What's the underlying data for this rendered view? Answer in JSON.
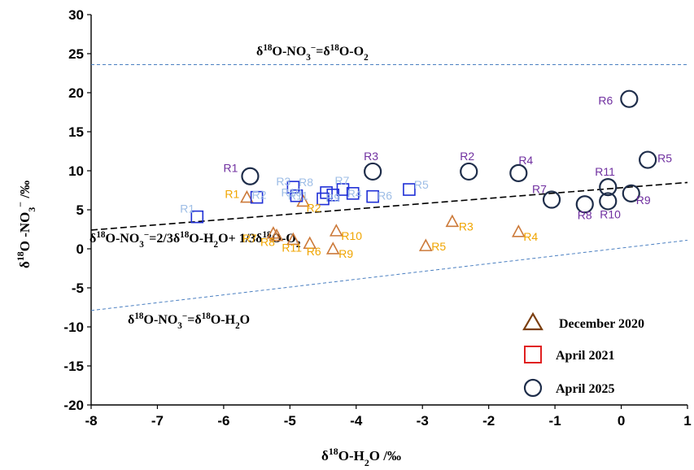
{
  "chart_data": {
    "type": "scatter",
    "xlabel": "δ18O-H2O /‰",
    "ylabel": "δ18O -NO3− /‰",
    "xlim": [
      -8,
      1
    ],
    "ylim": [
      -20,
      30
    ],
    "xticks": [
      "-8",
      "-7",
      "-6",
      "-5",
      "-4",
      "-3",
      "-2",
      "-1",
      "0",
      "1"
    ],
    "yticks": [
      "-20",
      "-15",
      "-10",
      "-5",
      "0",
      "5",
      "10",
      "15",
      "20",
      "25",
      "30"
    ],
    "colors": {
      "dec_marker": "#cc7a3a",
      "dec_label": "#f0a500",
      "apr21_marker": "#1f2fd6",
      "apr21_label": "#9dbde6",
      "apr25_marker": "#1e2d4a",
      "apr25_label": "#7030a0",
      "ref_line": "#4a7fc1",
      "mix_line": "#000000",
      "legend_triangle": "#7b3f10",
      "legend_square": "#e02020",
      "legend_circle": "#1e2d4a"
    },
    "lines": [
      {
        "name": "air-o2-line",
        "style": "dashed-blue",
        "points": [
          [
            -8,
            23.6
          ],
          [
            1,
            23.6
          ]
        ]
      },
      {
        "name": "water-line",
        "style": "dashed-blue",
        "points": [
          [
            -8,
            -7.9
          ],
          [
            1,
            1.1
          ]
        ]
      },
      {
        "name": "mixing-line",
        "style": "dashed-black",
        "points": [
          [
            -8,
            2.4
          ],
          [
            1,
            8.5
          ]
        ]
      }
    ],
    "series": [
      {
        "name": "December 2020",
        "marker": "triangle",
        "points": [
          {
            "label": "R1",
            "x": -5.65,
            "y": 6.5
          },
          {
            "label": "R2",
            "x": -4.8,
            "y": 6.0
          },
          {
            "label": "R3",
            "x": -2.55,
            "y": 3.4
          },
          {
            "label": "R4",
            "x": -1.55,
            "y": 2.1
          },
          {
            "label": "R5",
            "x": -2.95,
            "y": 0.3
          },
          {
            "label": "R6",
            "x": -4.7,
            "y": 0.6
          },
          {
            "label": "R7",
            "x": -5.25,
            "y": 1.9
          },
          {
            "label": "R8",
            "x": -5.2,
            "y": 1.6
          },
          {
            "label": "R9",
            "x": -4.35,
            "y": -0.1
          },
          {
            "label": "R10",
            "x": -4.3,
            "y": 2.2
          },
          {
            "label": "R11",
            "x": -4.95,
            "y": 1.1
          }
        ]
      },
      {
        "name": "April 2021",
        "marker": "square",
        "points": [
          {
            "label": "R1",
            "x": -6.4,
            "y": 4.1
          },
          {
            "label": "R2",
            "x": -5.5,
            "y": 6.6
          },
          {
            "label": "R3",
            "x": -4.95,
            "y": 7.9
          },
          {
            "label": "R4",
            "x": -4.05,
            "y": 7.1
          },
          {
            "label": "R5",
            "x": -3.2,
            "y": 7.6
          },
          {
            "label": "R6",
            "x": -3.75,
            "y": 6.7
          },
          {
            "label": "R7",
            "x": -4.2,
            "y": 7.6
          },
          {
            "label": "R8",
            "x": -4.45,
            "y": 7.2
          },
          {
            "label": "R9",
            "x": -4.35,
            "y": 6.9
          },
          {
            "label": "R10",
            "x": -4.9,
            "y": 6.8
          },
          {
            "label": "R11",
            "x": -4.5,
            "y": 6.4
          }
        ]
      },
      {
        "name": "April 2025",
        "marker": "circle",
        "points": [
          {
            "label": "R1",
            "x": -5.6,
            "y": 9.3
          },
          {
            "label": "R2",
            "x": -2.3,
            "y": 9.9
          },
          {
            "label": "R3",
            "x": -3.75,
            "y": 9.9
          },
          {
            "label": "R4",
            "x": -1.55,
            "y": 9.7
          },
          {
            "label": "R5",
            "x": 0.4,
            "y": 11.4
          },
          {
            "label": "R6",
            "x": 0.12,
            "y": 19.2
          },
          {
            "label": "R7",
            "x": -1.05,
            "y": 6.3
          },
          {
            "label": "R8",
            "x": -0.55,
            "y": 5.7
          },
          {
            "label": "R9",
            "x": 0.15,
            "y": 7.1
          },
          {
            "label": "R10",
            "x": -0.2,
            "y": 6.1
          },
          {
            "label": "R11",
            "x": -0.2,
            "y": 7.9
          }
        ]
      }
    ],
    "annotations": {
      "air_o2": {
        "text": "δ18O-NO3−=δ18O-O2",
        "parts": [
          "δ",
          "18",
          "O-NO",
          "3",
          "−",
          "=δ",
          "18",
          "O-O",
          "2"
        ]
      },
      "mixing": {
        "text": "δ18O-NO3−=2/3δ18O-H2O+ 1/3δ18O-O2",
        "parts": [
          "δ",
          "18",
          "O-NO",
          "3",
          "−",
          "=2/3δ",
          "18",
          "O-H",
          "2",
          "O+ 1/3δ",
          "18",
          "O-O",
          "2"
        ]
      },
      "water": {
        "text": "δ18O-NO3−=δ18O-H2O",
        "parts": [
          "δ",
          "18",
          "O-NO",
          "3",
          "−",
          "=δ",
          "18",
          "O-H",
          "2",
          "O"
        ]
      }
    },
    "xlabel_parts": [
      "δ",
      "18",
      "O-H",
      "2",
      "O   /‰"
    ],
    "ylabel_parts": [
      "δ",
      "18",
      "O -NO",
      "3",
      "−",
      "  /‰"
    ],
    "legend": [
      {
        "marker": "triangle",
        "label": "December 2020"
      },
      {
        "marker": "square",
        "label": "April 2021"
      },
      {
        "marker": "circle",
        "label": "April 2025"
      }
    ]
  }
}
